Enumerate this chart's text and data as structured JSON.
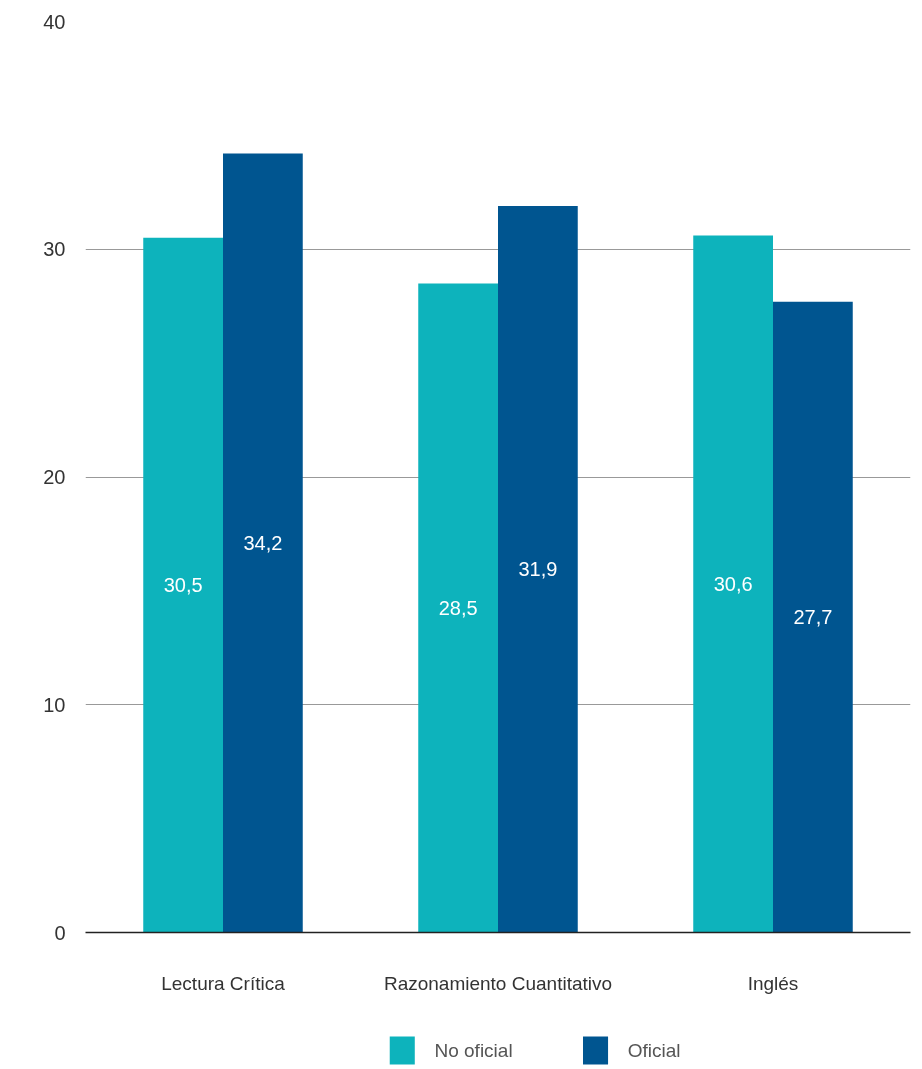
{
  "chart_data": {
    "type": "bar",
    "categories": [
      "Lectura Crítica",
      "Razonamiento Cuantitativo",
      "Inglés"
    ],
    "series": [
      {
        "name": "No oficial",
        "color": "#0db3bc",
        "values": [
          30.5,
          28.5,
          30.6
        ],
        "value_labels": [
          "30,5",
          "28,5",
          "30,6"
        ]
      },
      {
        "name": "Oficial",
        "color": "#005590",
        "values": [
          34.2,
          31.9,
          27.7
        ],
        "value_labels": [
          "34,2",
          "31,9",
          "27,7"
        ]
      }
    ],
    "ylim": [
      0,
      40
    ],
    "yticks": [
      0,
      10,
      20,
      30,
      40
    ],
    "grid": "y",
    "legend": "bottom"
  }
}
